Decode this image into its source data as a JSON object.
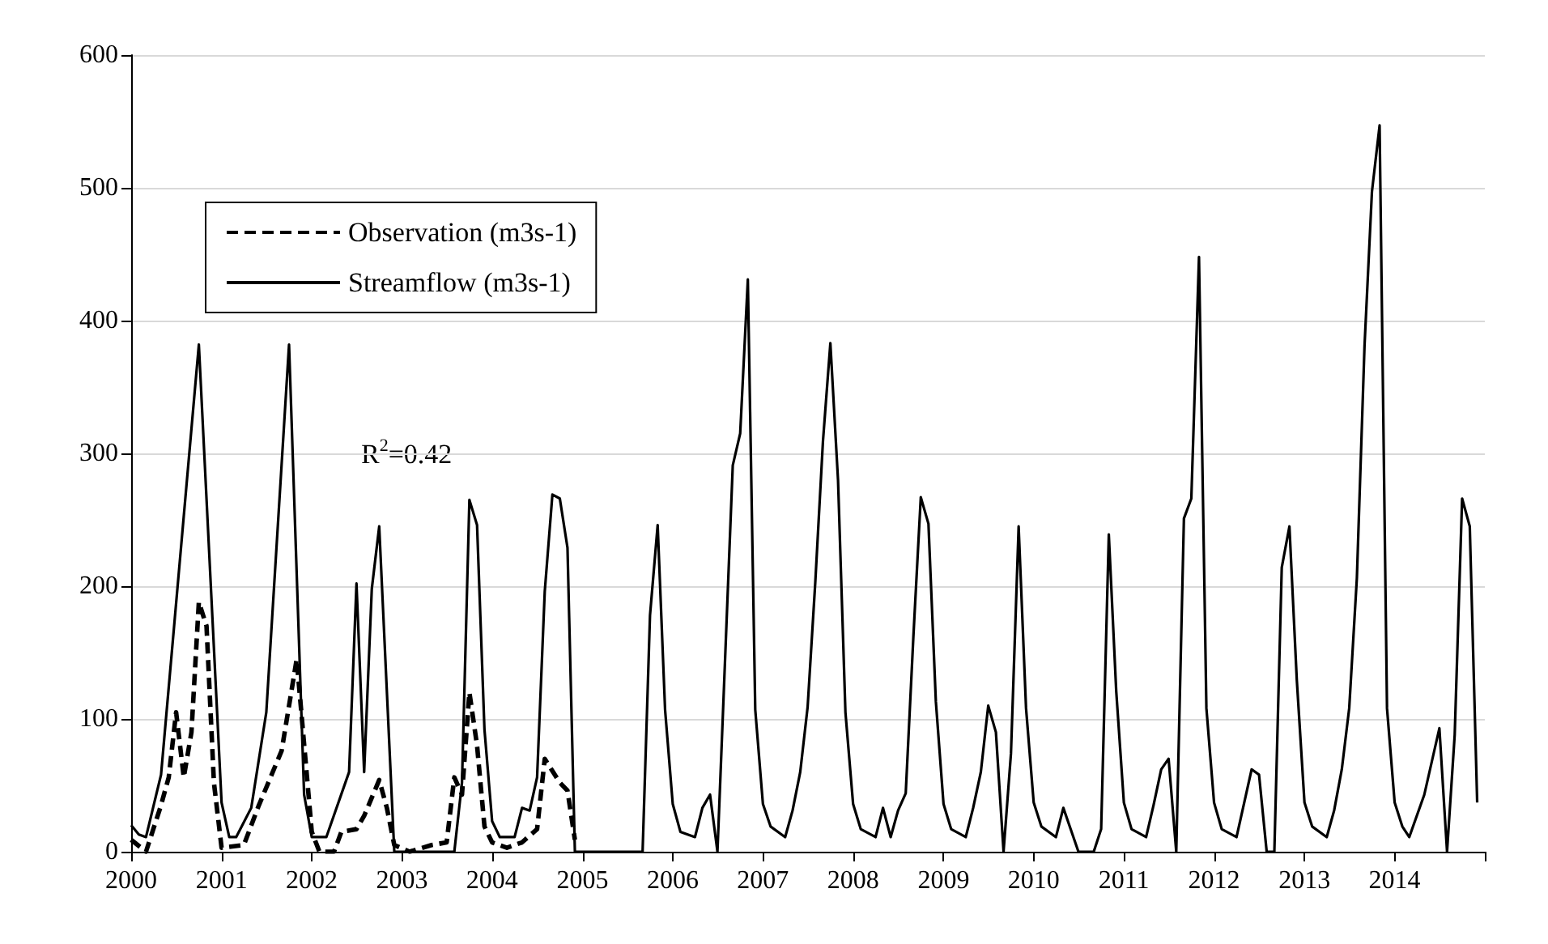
{
  "chart_data": {
    "type": "line",
    "series": [
      {
        "name": "Observation (m3s-1)",
        "color": "#000000",
        "line_style": "dashed",
        "x": [
          "2000-01",
          "2000-03",
          "2000-05",
          "2000-06",
          "2000-07",
          "2000-08",
          "2000-09",
          "2000-10",
          "2000-11",
          "2000-12",
          "2001-01",
          "2001-04",
          "2001-06",
          "2001-09",
          "2001-11",
          "2002-01",
          "2002-02",
          "2002-04",
          "2002-05",
          "2002-07",
          "2002-08",
          "2002-10",
          "2002-11",
          "2002-12",
          "2003-02",
          "2003-05",
          "2003-07",
          "2003-08",
          "2003-09",
          "2003-10",
          "2003-11",
          "2003-12",
          "2004-01",
          "2004-03",
          "2004-05",
          "2004-07",
          "2004-08",
          "2004-10",
          "2004-11",
          "2004-12"
        ],
        "values": [
          9,
          0,
          35,
          56,
          105,
          56,
          90,
          188,
          170,
          52,
          3,
          5,
          35,
          76,
          145,
          15,
          0,
          0,
          15,
          17,
          27,
          54,
          33,
          5,
          0,
          5,
          7,
          56,
          43,
          120,
          80,
          19,
          7,
          3,
          7,
          17,
          70,
          52,
          46,
          9
        ]
      },
      {
        "name": "Streamflow (m3s-1)",
        "color": "#000000",
        "line_style": "solid",
        "x": [
          "2000-01",
          "2000-02",
          "2000-03",
          "2000-05",
          "2000-10",
          "2001-01",
          "2001-02",
          "2001-03",
          "2001-05",
          "2001-07",
          "2001-10",
          "2001-12",
          "2002-01",
          "2002-03",
          "2002-06",
          "2002-07",
          "2002-08",
          "2002-09",
          "2002-10",
          "2002-12",
          "2003-08",
          "2003-09",
          "2003-10",
          "2003-11",
          "2003-12",
          "2004-01",
          "2004-02",
          "2004-04",
          "2004-05",
          "2004-06",
          "2004-07",
          "2004-08",
          "2004-09",
          "2004-10",
          "2004-11",
          "2004-12",
          "2005-09",
          "2005-10",
          "2005-11",
          "2005-12",
          "2006-01",
          "2006-02",
          "2006-04",
          "2006-05",
          "2006-06",
          "2006-07",
          "2006-09",
          "2006-10",
          "2006-11",
          "2006-12",
          "2007-01",
          "2007-02",
          "2007-04",
          "2007-05",
          "2007-06",
          "2007-07",
          "2007-08",
          "2007-09",
          "2007-10",
          "2007-11",
          "2007-12",
          "2008-01",
          "2008-02",
          "2008-04",
          "2008-05",
          "2008-06",
          "2008-07",
          "2008-08",
          "2008-09",
          "2008-10",
          "2008-11",
          "2008-12",
          "2009-01",
          "2009-02",
          "2009-04",
          "2009-05",
          "2009-06",
          "2009-07",
          "2009-08",
          "2009-09",
          "2009-10",
          "2009-11",
          "2009-12",
          "2010-01",
          "2010-02",
          "2010-04",
          "2010-05",
          "2010-07",
          "2010-09",
          "2010-10",
          "2010-11",
          "2010-12",
          "2011-01",
          "2011-02",
          "2011-04",
          "2011-05",
          "2011-06",
          "2011-07",
          "2011-08",
          "2011-09",
          "2011-10",
          "2011-11",
          "2011-12",
          "2012-01",
          "2012-02",
          "2012-04",
          "2012-06",
          "2012-07",
          "2012-08",
          "2012-09",
          "2012-10",
          "2012-11",
          "2012-12",
          "2013-01",
          "2013-02",
          "2013-04",
          "2013-05",
          "2013-06",
          "2013-07",
          "2013-08",
          "2013-09",
          "2013-10",
          "2013-11",
          "2013-12",
          "2014-01",
          "2014-02",
          "2014-03",
          "2014-05",
          "2014-07",
          "2014-08",
          "2014-09",
          "2014-10",
          "2014-11",
          "2014-12"
        ],
        "values": [
          20,
          13,
          11,
          58,
          382,
          37,
          11,
          11,
          33,
          105,
          382,
          43,
          11,
          11,
          60,
          202,
          60,
          198,
          245,
          0,
          0,
          52,
          265,
          246,
          92,
          23,
          11,
          11,
          33,
          31,
          56,
          196,
          269,
          266,
          229,
          0,
          0,
          178,
          246,
          107,
          36,
          15,
          11,
          33,
          43,
          0,
          291,
          315,
          431,
          107,
          36,
          19,
          11,
          31,
          60,
          109,
          203,
          309,
          383,
          280,
          105,
          36,
          17,
          11,
          33,
          11,
          31,
          44,
          162,
          267,
          247,
          113,
          36,
          17,
          11,
          33,
          60,
          110,
          90,
          0,
          74,
          245,
          108,
          37,
          19,
          11,
          33,
          0,
          0,
          17,
          239,
          121,
          37,
          17,
          11,
          35,
          62,
          70,
          0,
          251,
          266,
          448,
          108,
          37,
          17,
          11,
          62,
          58,
          0,
          0,
          214,
          245,
          129,
          37,
          19,
          11,
          31,
          62,
          108,
          206,
          381,
          497,
          547,
          108,
          37,
          19,
          11,
          43,
          93,
          0,
          88,
          266,
          245,
          37
        ]
      }
    ],
    "xlim": [
      "2000",
      "2015"
    ],
    "xticks": [
      "2000",
      "2001",
      "2002",
      "2003",
      "2004",
      "2005",
      "2006",
      "2007",
      "2008",
      "2009",
      "2010",
      "2011",
      "2012",
      "2013",
      "2014",
      {
        "value": "2015",
        "label": null
      }
    ],
    "ylim": [
      0,
      600
    ],
    "yticks": [
      0,
      100,
      200,
      300,
      400,
      500,
      600
    ],
    "grid": "y",
    "legend": "top left",
    "marker": "none",
    "annotations": [
      "R$^{2}$=0.42"
    ]
  }
}
